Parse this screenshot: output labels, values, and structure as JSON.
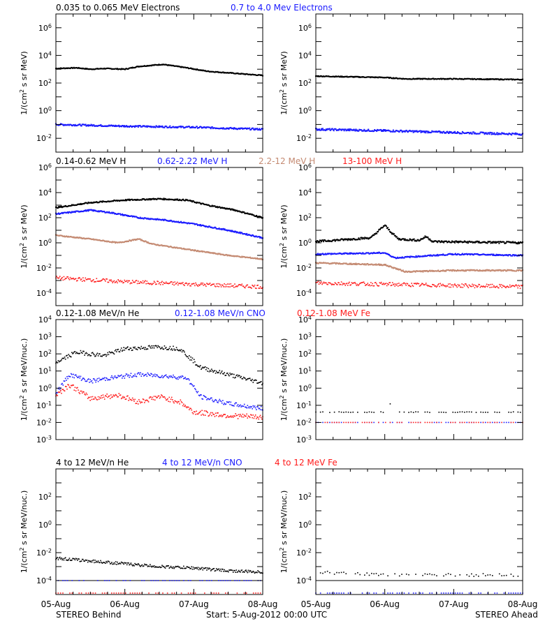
{
  "x_axis": {
    "tick_labels": [
      "05-Aug",
      "06-Aug",
      "07-Aug",
      "08-Aug"
    ],
    "range_days": [
      0,
      3
    ]
  },
  "footer": {
    "left": "STEREO Behind",
    "center": "Start:  5-Aug-2012 00:00 UTC",
    "right": "STEREO Ahead"
  },
  "colors": {
    "black": "#000000",
    "blue": "#1a1aff",
    "brown": "#c48a72",
    "red": "#ff1a1a"
  },
  "chart_data": [
    {
      "type": "scatter",
      "name": "electrons",
      "legend": [
        {
          "label": "0.035 to 0.065 MeV Electrons",
          "color": "#000000"
        },
        {
          "label": "0.7 to 4.0 Mev Electrons",
          "color": "#1a1aff"
        }
      ],
      "ylabel_main": "1/(cm",
      "ylabel_sup": "2",
      "ylabel_tail": " s sr MeV)",
      "yscale": "log",
      "ylim_exp": [
        -3,
        7
      ],
      "tick_exps": [
        -2,
        0,
        2,
        4,
        6
      ],
      "panels": [
        {
          "side": "STEREO Behind",
          "series": [
            {
              "color": "#000000",
              "knots": [
                [
                  0,
                  3.05
                ],
                [
                  0.3,
                  3.1
                ],
                [
                  0.5,
                  3.0
                ],
                [
                  0.7,
                  3.05
                ],
                [
                  1.0,
                  3.0
                ],
                [
                  1.2,
                  3.2
                ],
                [
                  1.55,
                  3.35
                ],
                [
                  1.9,
                  3.1
                ],
                [
                  2.2,
                  2.85
                ],
                [
                  2.6,
                  2.7
                ],
                [
                  3.0,
                  2.55
                ]
              ],
              "noise": 0.03,
              "style": "line"
            },
            {
              "color": "#1a1aff",
              "knots": [
                [
                  0,
                  -1.0
                ],
                [
                  1.0,
                  -1.12
                ],
                [
                  2.0,
                  -1.2
                ],
                [
                  3.0,
                  -1.35
                ]
              ],
              "noise": 0.06,
              "style": "line"
            }
          ]
        },
        {
          "side": "STEREO Ahead",
          "series": [
            {
              "color": "#000000",
              "knots": [
                [
                  0,
                  2.5
                ],
                [
                  1.0,
                  2.4
                ],
                [
                  1.3,
                  2.3
                ],
                [
                  2.0,
                  2.3
                ],
                [
                  3.0,
                  2.25
                ]
              ],
              "noise": 0.03,
              "style": "line"
            },
            {
              "color": "#1a1aff",
              "knots": [
                [
                  0,
                  -1.35
                ],
                [
                  1.0,
                  -1.45
                ],
                [
                  2.0,
                  -1.58
                ],
                [
                  3.0,
                  -1.7
                ]
              ],
              "noise": 0.07,
              "style": "line"
            }
          ]
        }
      ]
    },
    {
      "type": "scatter",
      "name": "protons",
      "legend": [
        {
          "label": "0.14-0.62 MeV H",
          "color": "#000000"
        },
        {
          "label": "0.62-2.22 MeV H",
          "color": "#1a1aff"
        },
        {
          "label": "2.2-12 MeV H",
          "color": "#c48a72"
        },
        {
          "label": "13-100 MeV H",
          "color": "#ff1a1a"
        }
      ],
      "ylabel_main": "1/(cm",
      "ylabel_sup": "2",
      "ylabel_tail": " s sr MeV)",
      "yscale": "log",
      "ylim_exp": [
        -5,
        6
      ],
      "tick_exps": [
        -4,
        -2,
        0,
        2,
        4,
        6
      ],
      "panels": [
        {
          "side": "STEREO Behind",
          "series": [
            {
              "color": "#000000",
              "knots": [
                [
                  0,
                  2.8
                ],
                [
                  0.5,
                  3.2
                ],
                [
                  1.0,
                  3.4
                ],
                [
                  1.5,
                  3.5
                ],
                [
                  1.9,
                  3.4
                ],
                [
                  2.2,
                  3.0
                ],
                [
                  2.6,
                  2.6
                ],
                [
                  3.0,
                  2.0
                ]
              ],
              "noise": 0.05,
              "style": "line"
            },
            {
              "color": "#1a1aff",
              "knots": [
                [
                  0,
                  2.3
                ],
                [
                  0.5,
                  2.6
                ],
                [
                  0.8,
                  2.4
                ],
                [
                  1.2,
                  2.0
                ],
                [
                  1.6,
                  1.8
                ],
                [
                  2.0,
                  1.5
                ],
                [
                  2.5,
                  1.0
                ],
                [
                  3.0,
                  0.4
                ]
              ],
              "noise": 0.05,
              "style": "line"
            },
            {
              "color": "#c48a72",
              "knots": [
                [
                  0,
                  0.6
                ],
                [
                  0.5,
                  0.3
                ],
                [
                  0.9,
                  0.0
                ],
                [
                  1.2,
                  0.3
                ],
                [
                  1.4,
                  -0.1
                ],
                [
                  2.0,
                  -0.6
                ],
                [
                  2.5,
                  -1.0
                ],
                [
                  3.0,
                  -1.3
                ]
              ],
              "noise": 0.04,
              "style": "line"
            },
            {
              "color": "#ff1a1a",
              "knots": [
                [
                  0,
                  -2.8
                ],
                [
                  1.0,
                  -3.1
                ],
                [
                  2.0,
                  -3.3
                ],
                [
                  3.0,
                  -3.5
                ]
              ],
              "noise": 0.15,
              "style": "scatter"
            }
          ]
        },
        {
          "side": "STEREO Ahead",
          "series": [
            {
              "color": "#000000",
              "knots": [
                [
                  0,
                  0.1
                ],
                [
                  0.8,
                  0.4
                ],
                [
                  1.0,
                  1.4
                ],
                [
                  1.1,
                  0.8
                ],
                [
                  1.2,
                  0.3
                ],
                [
                  1.5,
                  0.2
                ],
                [
                  1.6,
                  0.5
                ],
                [
                  1.7,
                  0.1
                ],
                [
                  3.0,
                  0.0
                ]
              ],
              "noise": 0.08,
              "style": "line"
            },
            {
              "color": "#1a1aff",
              "knots": [
                [
                  0,
                  -0.9
                ],
                [
                  1.0,
                  -0.8
                ],
                [
                  1.15,
                  -1.2
                ],
                [
                  2.0,
                  -0.9
                ],
                [
                  3.0,
                  -1.0
                ]
              ],
              "noise": 0.05,
              "style": "line"
            },
            {
              "color": "#c48a72",
              "knots": [
                [
                  0,
                  -1.6
                ],
                [
                  1.0,
                  -1.75
                ],
                [
                  1.3,
                  -2.3
                ],
                [
                  2.0,
                  -2.2
                ],
                [
                  3.0,
                  -2.2
                ]
              ],
              "noise": 0.05,
              "style": "line"
            },
            {
              "color": "#ff1a1a",
              "knots": [
                [
                  0,
                  -3.2
                ],
                [
                  1.0,
                  -3.3
                ],
                [
                  2.0,
                  -3.4
                ],
                [
                  3.0,
                  -3.5
                ]
              ],
              "noise": 0.15,
              "style": "scatter"
            }
          ]
        }
      ]
    },
    {
      "type": "scatter",
      "name": "low-energy-ions",
      "legend": [
        {
          "label": "0.12-1.08 MeV/n He",
          "color": "#000000"
        },
        {
          "label": "0.12-1.08 MeV/n CNO",
          "color": "#1a1aff"
        },
        {
          "label": "0.12-1.08 MeV Fe",
          "color": "#ff1a1a"
        }
      ],
      "ylabel_main": "1/(cm",
      "ylabel_sup": "2",
      "ylabel_tail": " s sr MeV/nuc.)",
      "yscale": "log",
      "ylim_exp": [
        -3,
        4
      ],
      "tick_exps": [
        -3,
        -2,
        -1,
        0,
        1,
        2,
        3,
        4
      ],
      "panels": [
        {
          "side": "STEREO Behind",
          "series": [
            {
              "color": "#000000",
              "knots": [
                [
                  0,
                  1.5
                ],
                [
                  0.3,
                  2.1
                ],
                [
                  0.7,
                  1.9
                ],
                [
                  1.0,
                  2.3
                ],
                [
                  1.5,
                  2.4
                ],
                [
                  1.8,
                  2.3
                ],
                [
                  2.1,
                  1.2
                ],
                [
                  2.5,
                  0.8
                ],
                [
                  3.0,
                  0.3
                ]
              ],
              "noise": 0.12,
              "style": "scatter"
            },
            {
              "color": "#1a1aff",
              "knots": [
                [
                  0,
                  -0.3
                ],
                [
                  0.2,
                  0.8
                ],
                [
                  0.5,
                  0.4
                ],
                [
                  0.8,
                  0.6
                ],
                [
                  1.2,
                  0.8
                ],
                [
                  1.6,
                  0.7
                ],
                [
                  1.9,
                  0.6
                ],
                [
                  2.1,
                  -0.5
                ],
                [
                  2.5,
                  -0.9
                ],
                [
                  3.0,
                  -1.2
                ]
              ],
              "noise": 0.12,
              "style": "scatter"
            },
            {
              "color": "#ff1a1a",
              "knots": [
                [
                  0,
                  -0.4
                ],
                [
                  0.2,
                  0.2
                ],
                [
                  0.5,
                  -0.6
                ],
                [
                  0.9,
                  -0.4
                ],
                [
                  1.2,
                  -0.8
                ],
                [
                  1.5,
                  -0.5
                ],
                [
                  1.8,
                  -0.8
                ],
                [
                  2.0,
                  -1.4
                ],
                [
                  2.5,
                  -1.6
                ],
                [
                  3.0,
                  -1.7
                ]
              ],
              "noise": 0.15,
              "style": "scatter"
            }
          ]
        },
        {
          "side": "STEREO Ahead",
          "series": [
            {
              "color": "#000000",
              "knots": [
                [
                  0,
                  -1.4
                ],
                [
                  1.0,
                  -1.4
                ],
                [
                  1.05,
                  -0.7
                ],
                [
                  1.15,
                  -1.4
                ],
                [
                  3.0,
                  -1.4
                ]
              ],
              "noise": 0.02,
              "style": "sparse"
            },
            {
              "color": "#1a1aff",
              "knots": [
                [
                  0,
                  -2.0
                ],
                [
                  3.0,
                  -2.0
                ]
              ],
              "noise": 0.0,
              "style": "sparse-dots"
            },
            {
              "color": "#ff1a1a",
              "knots": [
                [
                  0,
                  -2.0
                ],
                [
                  3.0,
                  -2.0
                ]
              ],
              "noise": 0.0,
              "style": "sparse-dots"
            }
          ]
        }
      ]
    },
    {
      "type": "scatter",
      "name": "high-energy-ions",
      "legend": [
        {
          "label": "4 to 12 MeV/n He",
          "color": "#000000"
        },
        {
          "label": "4 to 12 MeV/n CNO",
          "color": "#1a1aff"
        },
        {
          "label": "4 to 12 MeV Fe",
          "color": "#ff1a1a"
        }
      ],
      "ylabel_main": "1/(cm",
      "ylabel_sup": "2",
      "ylabel_tail": " s sr MeV/nuc.)",
      "yscale": "log",
      "ylim_exp": [
        -5,
        4
      ],
      "tick_exps": [
        -4,
        -2,
        0,
        2
      ],
      "panels": [
        {
          "side": "STEREO Behind",
          "series": [
            {
              "color": "#000000",
              "knots": [
                [
                  0,
                  -2.4
                ],
                [
                  0.5,
                  -2.6
                ],
                [
                  1.0,
                  -2.8
                ],
                [
                  1.5,
                  -3.0
                ],
                [
                  2.0,
                  -3.1
                ],
                [
                  2.5,
                  -3.3
                ],
                [
                  3.0,
                  -3.4
                ]
              ],
              "noise": 0.1,
              "style": "scatter"
            },
            {
              "color": "#000000",
              "knots": [
                [
                  0,
                  -4.0
                ],
                [
                  3.0,
                  -4.0
                ]
              ],
              "noise": 0.0,
              "style": "floor"
            },
            {
              "color": "#1a1aff",
              "knots": [
                [
                  0,
                  -4.0
                ],
                [
                  3.0,
                  -4.0
                ]
              ],
              "noise": 0.0,
              "style": "sparse-dots"
            },
            {
              "color": "#ff1a1a",
              "knots": [
                [
                  0,
                  -4.9
                ],
                [
                  3.0,
                  -4.9
                ]
              ],
              "noise": 0.0,
              "style": "sparse-dots"
            }
          ]
        },
        {
          "side": "STEREO Ahead",
          "series": [
            {
              "color": "#000000",
              "knots": [
                [
                  0,
                  -3.4
                ],
                [
                  1.0,
                  -3.6
                ],
                [
                  3.0,
                  -3.6
                ]
              ],
              "noise": 0.1,
              "style": "sparse"
            },
            {
              "color": "#000000",
              "knots": [
                [
                  0,
                  -4.0
                ],
                [
                  3.0,
                  -4.0
                ]
              ],
              "noise": 0.0,
              "style": "floor"
            },
            {
              "color": "#1a1aff",
              "knots": [
                [
                  0,
                  -4.9
                ],
                [
                  3.0,
                  -4.9
                ]
              ],
              "noise": 0.0,
              "style": "sparse-dots"
            }
          ]
        }
      ]
    }
  ]
}
